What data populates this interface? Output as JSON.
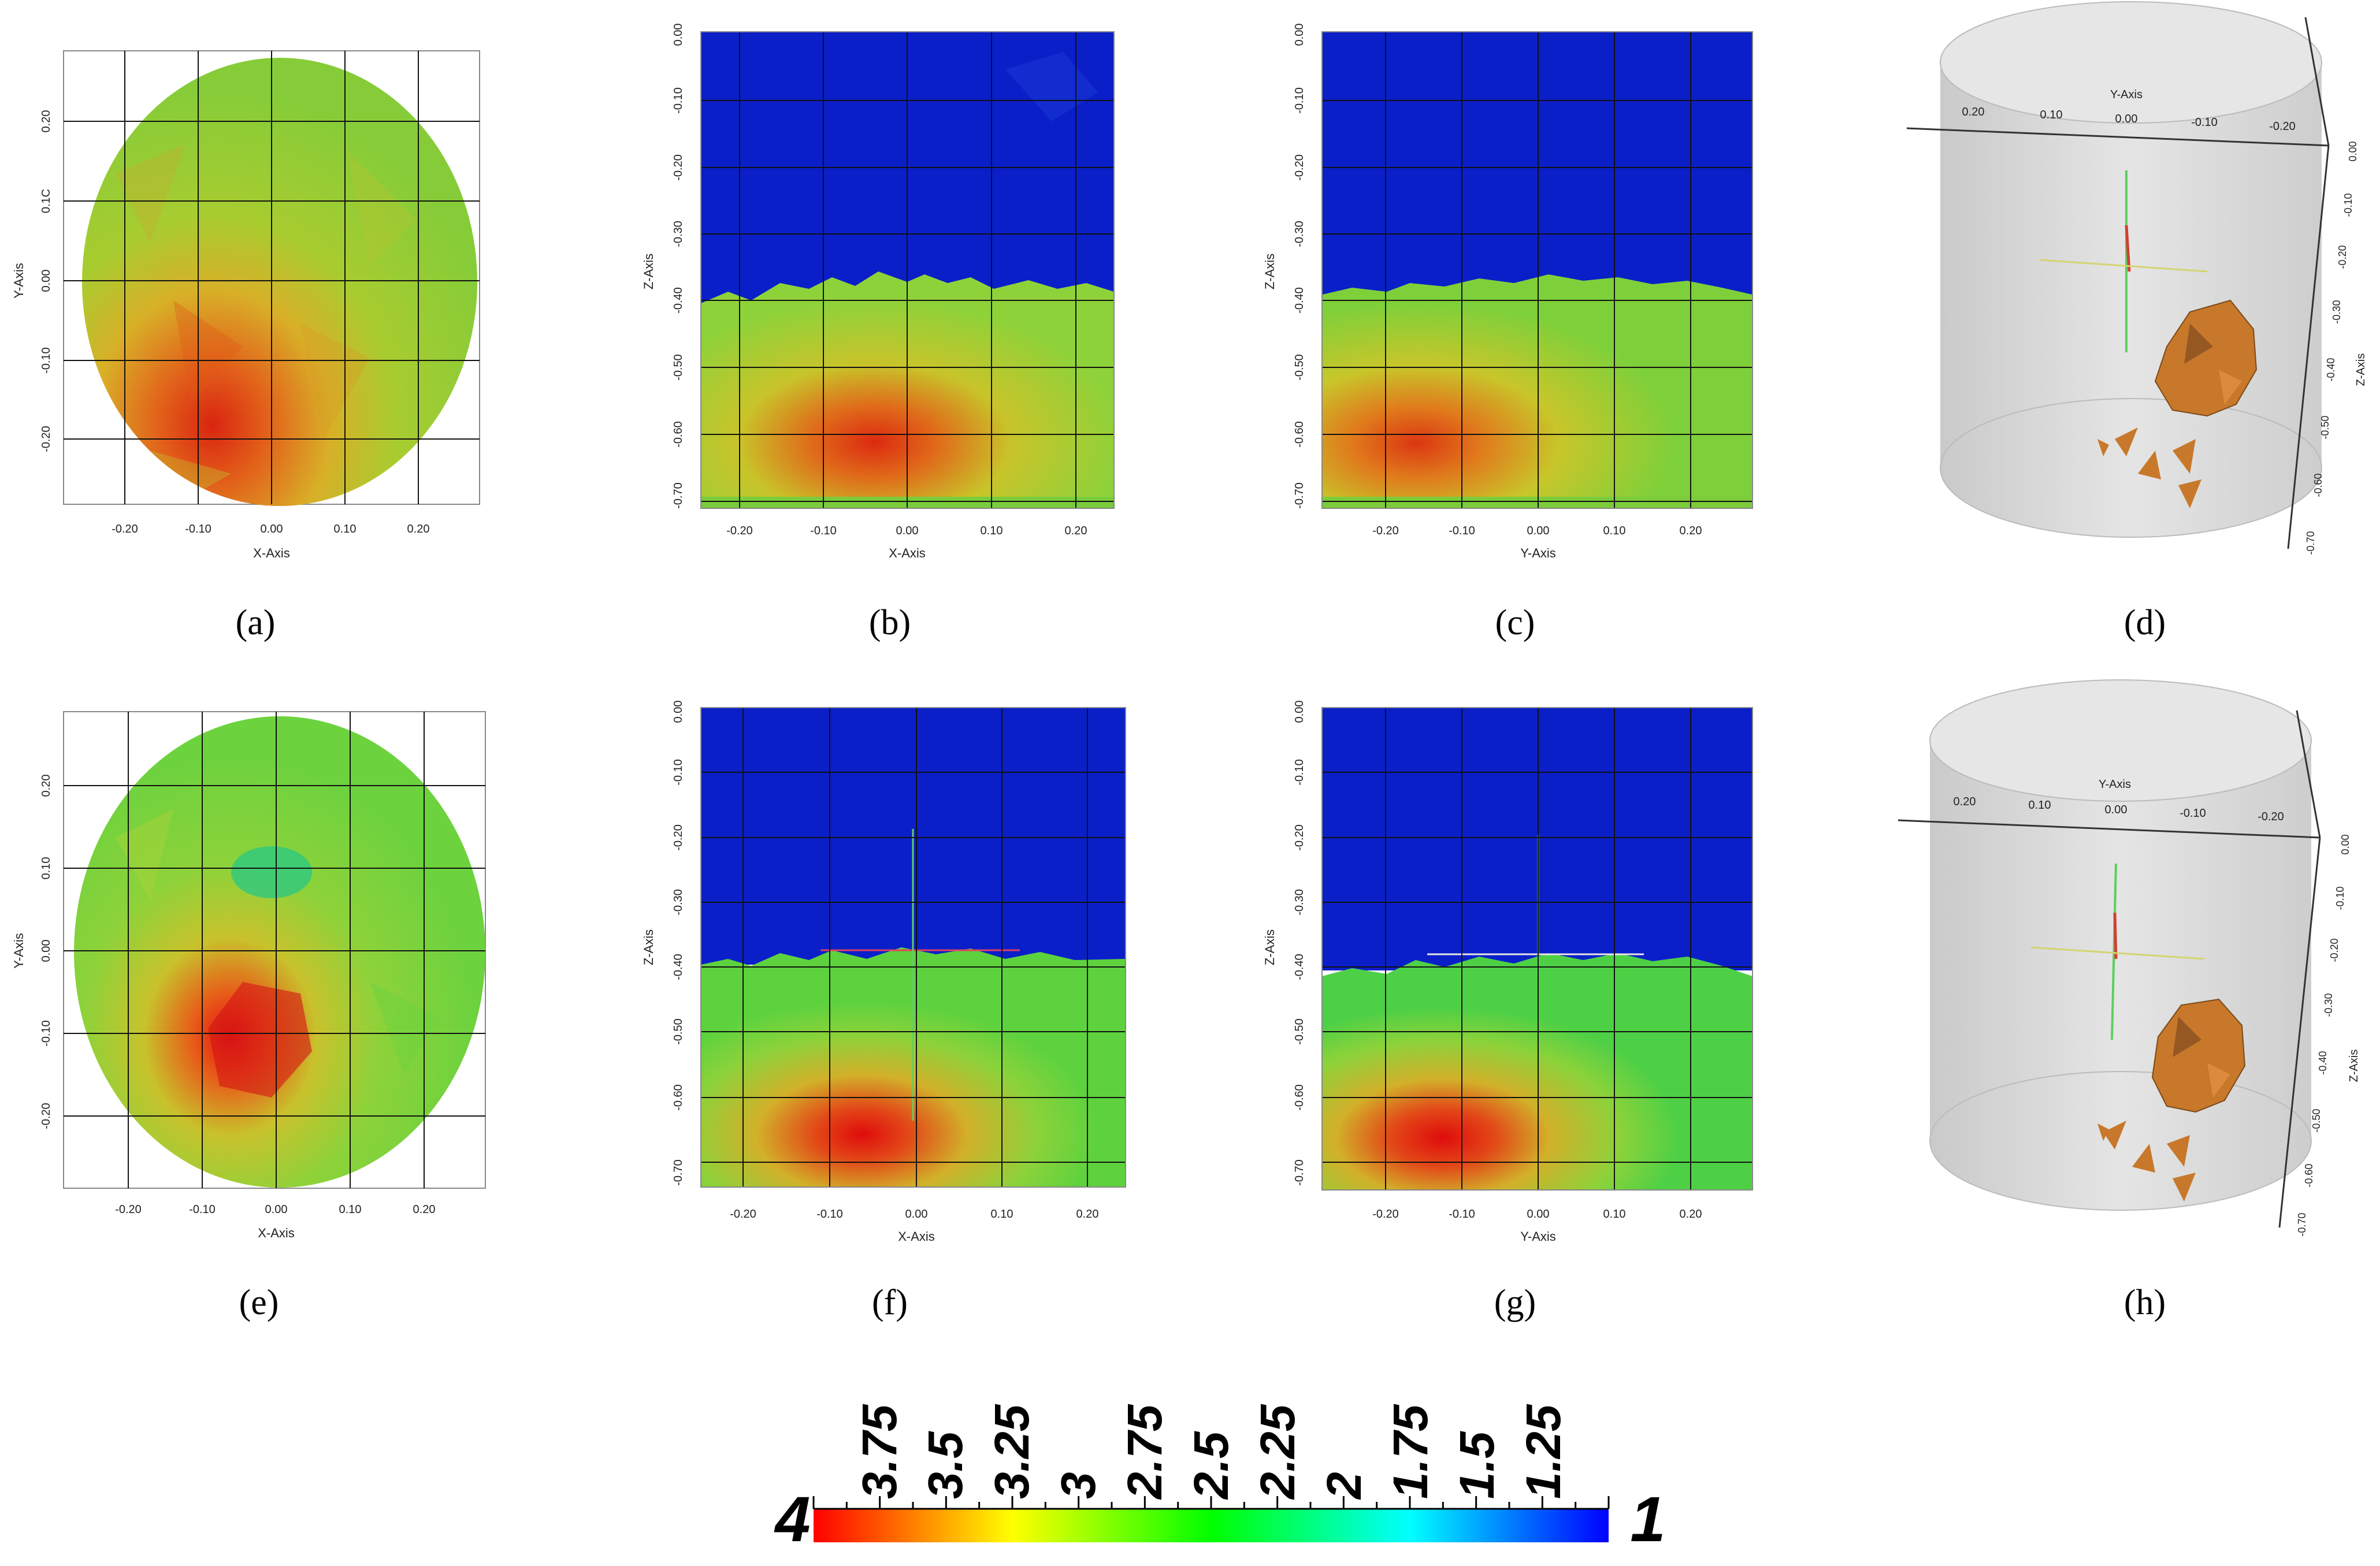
{
  "panels": {
    "a": {
      "caption": "(a)",
      "x_axis_label": "X-Axis",
      "y_axis_label": "Y-Axis",
      "x_ticks": [
        "-0.20",
        "-0.10",
        "0.00",
        "0.10",
        "0.20"
      ],
      "y_ticks": [
        "0.20",
        "0.1C",
        "0.00",
        "-0.10",
        "-0.20"
      ]
    },
    "b": {
      "caption": "(b)",
      "x_axis_label": "X-Axis",
      "y_axis_label": "Z-Axis",
      "x_ticks": [
        "-0.20",
        "-0.10",
        "0.00",
        "0.10",
        "0.20"
      ],
      "y_ticks": [
        "0.00",
        "-0.10",
        "-0.20",
        "-0.30",
        "-0.40",
        "-0.50",
        "-0.60",
        "-0.70"
      ]
    },
    "c": {
      "caption": "(c)",
      "x_axis_label": "Y-Axis",
      "y_axis_label": "Z-Axis",
      "x_ticks": [
        "-0.20",
        "-0.10",
        "0.00",
        "0.10",
        "0.20"
      ],
      "y_ticks": [
        "0.00",
        "-0.10",
        "-0.20",
        "-0.30",
        "-0.40",
        "-0.50",
        "-0.60",
        "-0.70"
      ]
    },
    "d": {
      "caption": "(d)",
      "top_axis_label": "Y-Axis",
      "side_axis_label": "Z-Axis",
      "top_ticks": [
        "0.20",
        "0.10",
        "0.00",
        "-0.10",
        "-0.20"
      ],
      "side_ticks": [
        "0.00",
        "-0.10",
        "-0.20",
        "-0.30",
        "-0.40",
        "-0.50",
        "-0.60",
        "-0.70"
      ]
    },
    "e": {
      "caption": "(e)",
      "x_axis_label": "X-Axis",
      "y_axis_label": "Y-Axis",
      "x_ticks": [
        "-0.20",
        "-0.10",
        "0.00",
        "0.10",
        "0.20"
      ],
      "y_ticks": [
        "0.20",
        "0.10",
        "0.00",
        "-0.10",
        "-0.20"
      ]
    },
    "f": {
      "caption": "(f)",
      "x_axis_label": "X-Axis",
      "y_axis_label": "Z-Axis",
      "x_ticks": [
        "-0.20",
        "-0.10",
        "0.00",
        "0.10",
        "0.20"
      ],
      "y_ticks": [
        "0.00",
        "-0.10",
        "-0.20",
        "-0.30",
        "-0.40",
        "-0.50",
        "-0.60",
        "-0.70"
      ]
    },
    "g": {
      "caption": "(g)",
      "x_axis_label": "Y-Axis",
      "y_axis_label": "Z-Axis",
      "x_ticks": [
        "-0.20",
        "-0.10",
        "0.00",
        "0.10",
        "0.20"
      ],
      "y_ticks": [
        "0.00",
        "-0.10",
        "-0.20",
        "-0.30",
        "-0.40",
        "-0.50",
        "-0.60",
        "-0.70"
      ]
    },
    "h": {
      "caption": "(h)",
      "top_axis_label": "Y-Axis",
      "side_axis_label": "Z-Axis",
      "top_ticks": [
        "0.20",
        "0.10",
        "0.00",
        "-0.10",
        "-0.20"
      ],
      "side_ticks": [
        "0.00",
        "-0.10",
        "-0.20",
        "-0.30",
        "-0.40",
        "-0.50",
        "-0.60",
        "-0.70"
      ]
    }
  },
  "colorbar": {
    "min_label": "4",
    "max_label": "1",
    "tick_labels": [
      "3.75",
      "3.5",
      "3.25",
      "3",
      "2.75",
      "2.5",
      "2.25",
      "2",
      "1.75",
      "1.5",
      "1.25"
    ],
    "colors": [
      "#ff0000",
      "#ff7f00",
      "#ffff00",
      "#7fff00",
      "#00ff00",
      "#00ff7f",
      "#00ffff",
      "#007fff",
      "#0000ff"
    ]
  },
  "colors": {
    "field_green": "#8ed23a",
    "hot_red": "#e02810",
    "air_blue": "#0a1fc8",
    "isosurface": "#c8782a",
    "cylinder": "#d9d9d9"
  }
}
